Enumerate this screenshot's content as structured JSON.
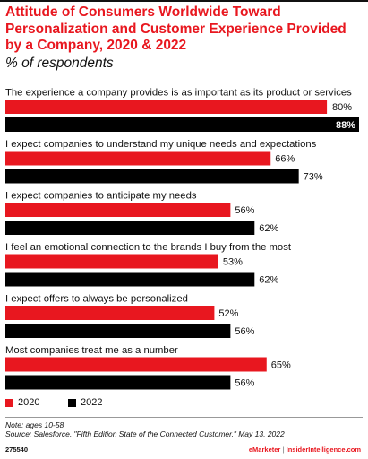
{
  "header": {
    "title": "Attitude of Consumers Worldwide Toward Personalization and Customer Experience Provided by a Company, 2020 & 2022",
    "subtitle": "% of respondents"
  },
  "colors": {
    "accent": "#e8171f",
    "series_2020": "#e8171f",
    "series_2022": "#000000"
  },
  "chart_data": {
    "type": "bar",
    "orientation": "horizontal",
    "title": "Attitude of Consumers Worldwide Toward Personalization and Customer Experience Provided by a Company, 2020 & 2022",
    "subtitle": "% of respondents",
    "categories": [
      "The experience a company provides is as important as its product or services",
      "I expect companies to understand my unique needs and expectations",
      "I expect companies to anticipate my needs",
      "I feel an emotional connection to the brands I buy from the most",
      "I expect offers to always be personalized",
      "Most companies treat me as a number"
    ],
    "series": [
      {
        "name": "2020",
        "color": "#e8171f",
        "values": [
          80,
          66,
          56,
          53,
          52,
          65
        ],
        "labels": [
          "80%",
          "66%",
          "56%",
          "53%",
          "52%",
          "65%"
        ]
      },
      {
        "name": "2022",
        "color": "#000000",
        "values": [
          88,
          73,
          62,
          62,
          56,
          56
        ],
        "labels": [
          "88%",
          "73%",
          "62%",
          "62%",
          "56%",
          "56%"
        ]
      }
    ],
    "xlim": [
      0,
      88
    ],
    "grid": false,
    "legend": "bottom-left"
  },
  "footer": {
    "note": "Note: ages 10-58",
    "source": "Source: Salesforce, \"Fifth Edition State of the Connected Customer,\" May 13, 2022",
    "chart_id": "275540",
    "brand_emarketer": "eMarketer",
    "brand_separator": "|",
    "brand_insider": "InsiderIntelligence.com"
  }
}
